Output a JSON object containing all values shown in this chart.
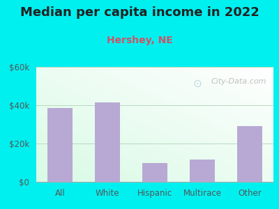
{
  "title": "Median per capita income in 2022",
  "subtitle": "Hershey, NE",
  "categories": [
    "All",
    "White",
    "Hispanic",
    "Multirace",
    "Other"
  ],
  "values": [
    38500,
    41500,
    10000,
    11500,
    29000
  ],
  "bar_color": "#b8a9d4",
  "title_fontsize": 13,
  "subtitle_fontsize": 10,
  "subtitle_color": "#cc5566",
  "title_color": "#222222",
  "tick_color": "#555555",
  "ylim": [
    0,
    60000
  ],
  "yticks": [
    0,
    20000,
    40000,
    60000
  ],
  "ytick_labels": [
    "$0",
    "$20k",
    "$40k",
    "$60k"
  ],
  "bg_outer": "#00f0f0",
  "watermark": "City-Data.com"
}
